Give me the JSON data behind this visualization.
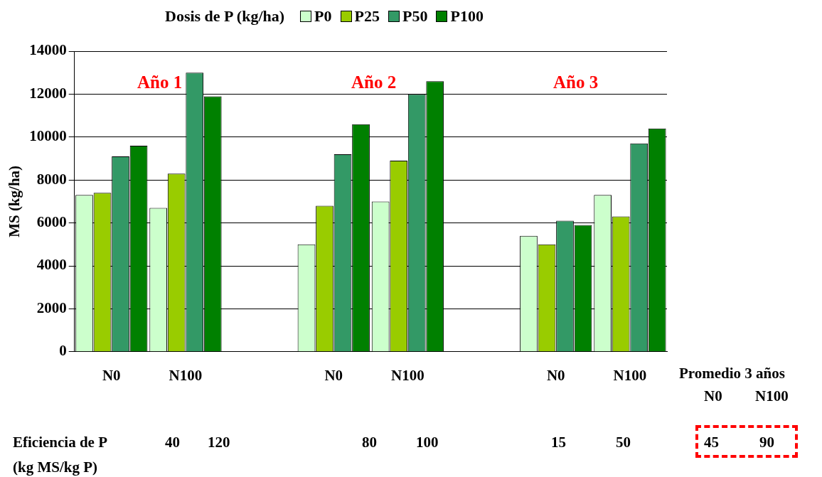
{
  "chart_data": {
    "type": "bar",
    "ylabel": "MS (kg/ha)",
    "legend_title": "Dosis de P (kg/ha)",
    "legend": "top",
    "grid": "y",
    "categories": [
      "N0",
      "N100",
      null,
      "N0",
      "N100",
      null,
      "N0",
      "N100"
    ],
    "ylim": [
      0,
      14000
    ],
    "yticks": [
      0,
      2000,
      4000,
      6000,
      8000,
      10000,
      12000,
      14000
    ],
    "series": [
      {
        "name": "P0",
        "color": "#ccffcc",
        "values": [
          7300,
          6700,
          null,
          5000,
          7000,
          null,
          5400,
          7300
        ]
      },
      {
        "name": "P25",
        "color": "#99cc00",
        "values": [
          7400,
          8300,
          null,
          6800,
          8900,
          null,
          5000,
          6300
        ]
      },
      {
        "name": "P50",
        "color": "#339966",
        "values": [
          9100,
          13000,
          null,
          9200,
          12000,
          null,
          6100,
          9700
        ]
      },
      {
        "name": "P100",
        "color": "#008000",
        "values": [
          9600,
          11900,
          null,
          10600,
          12600,
          null,
          5900,
          10400
        ]
      }
    ],
    "annotations": [
      "Año 1",
      "Año 2",
      "Año 3",
      "Eficiencia de P",
      "(kg MS/kg P)",
      "40",
      "120",
      "80",
      "100",
      "15",
      "50",
      "Promedio 3 años",
      "N0",
      "N100",
      "45",
      "90"
    ]
  }
}
